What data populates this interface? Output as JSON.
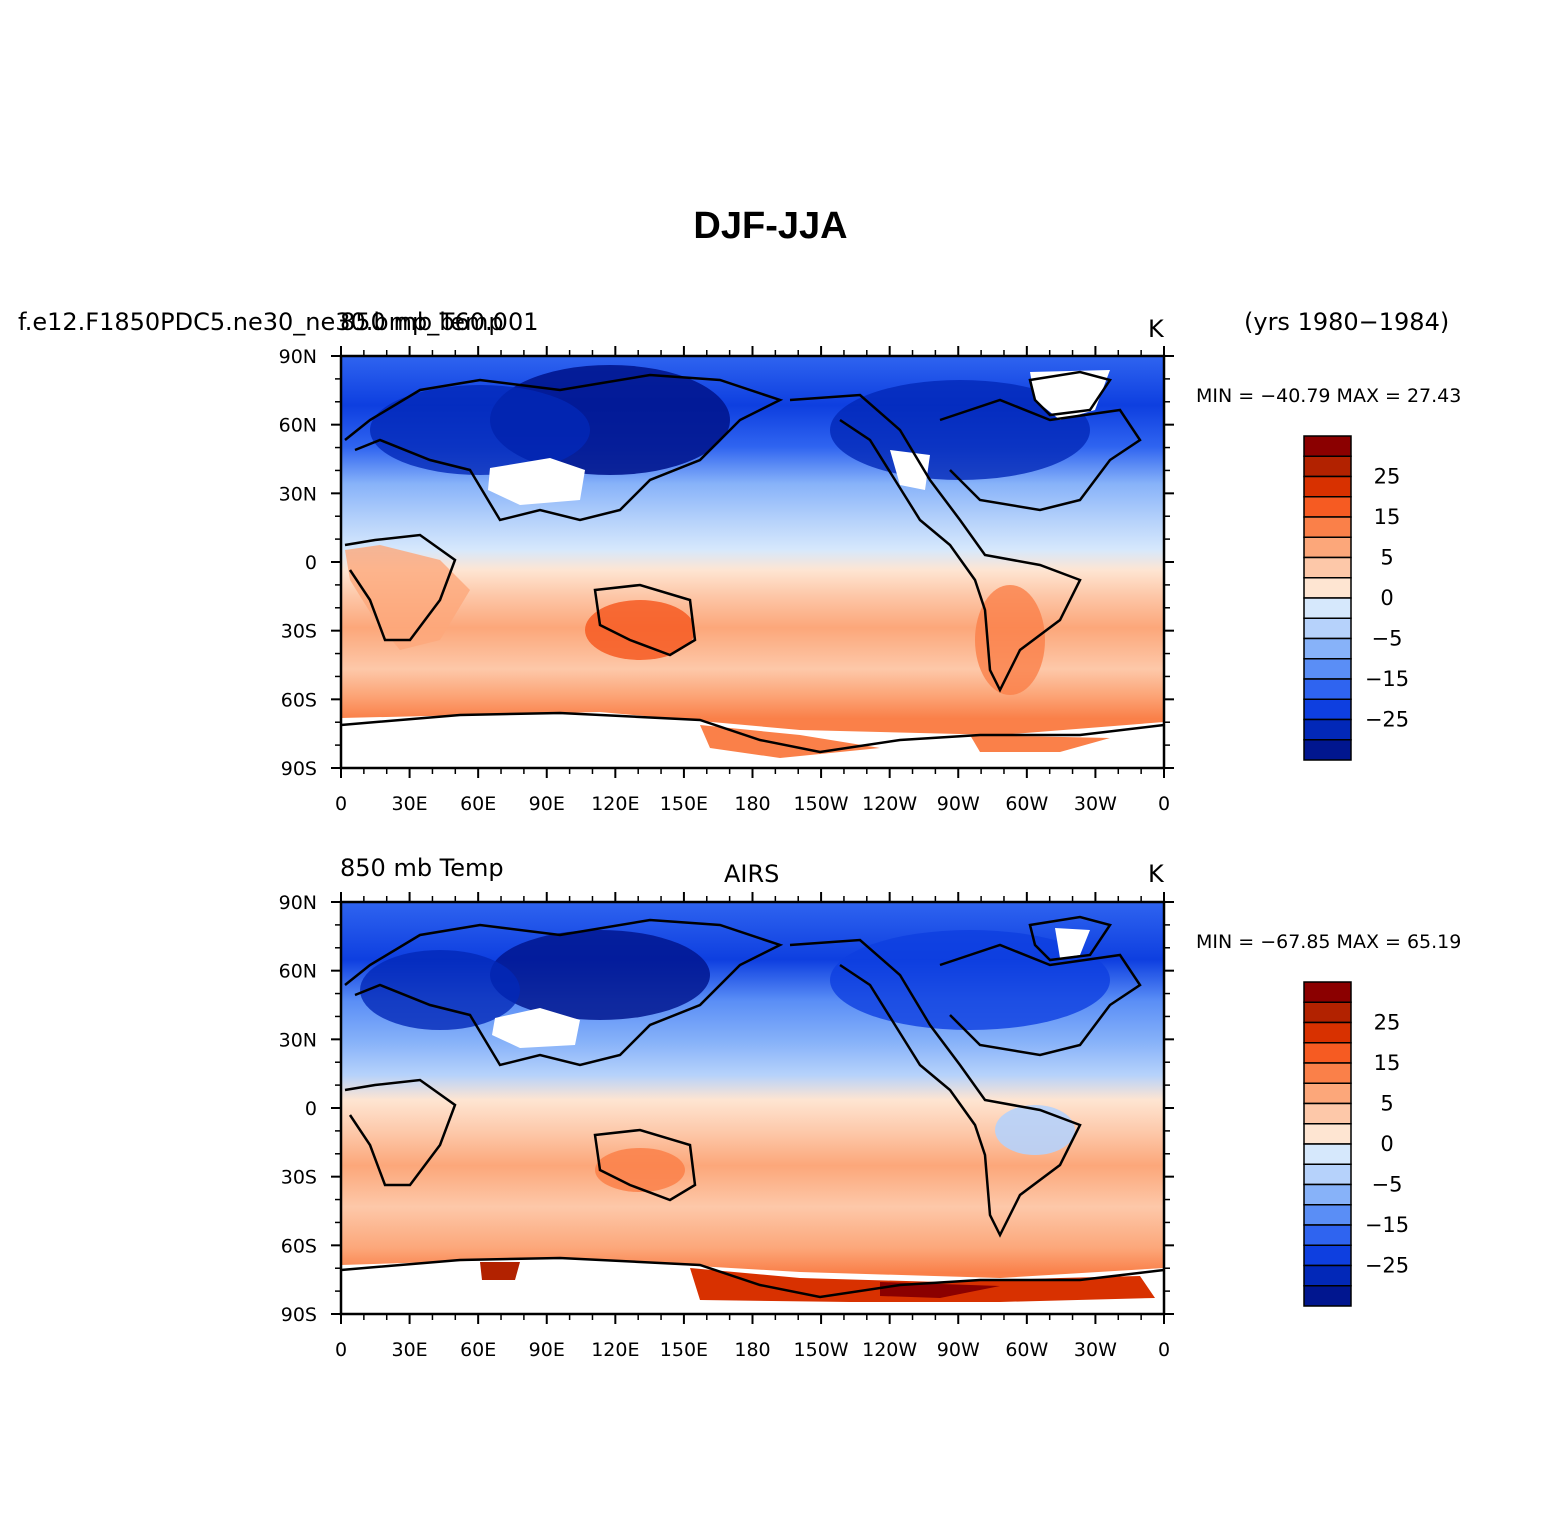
{
  "title": "DJF-JJA",
  "panels": [
    {
      "left_title": "f.e12.F1850PDC5.ne30_ne30.bmp_b60.001",
      "left_title_overlay": "850 mb Temp",
      "center_title": "",
      "right_title": "K",
      "years": "(yrs 1980−1984)",
      "minmax": "MIN = −40.79 MAX =  27.43"
    },
    {
      "left_title": "850 mb Temp",
      "center_title": "AIRS",
      "right_title": "K",
      "years": "",
      "minmax": "MIN = −67.85 MAX =  65.19"
    }
  ],
  "lon_ticks": [
    "0",
    "30E",
    "60E",
    "90E",
    "120E",
    "150E",
    "180",
    "150W",
    "120W",
    "90W",
    "60W",
    "30W",
    "0"
  ],
  "lat_ticks": [
    "90N",
    "60N",
    "30N",
    "0",
    "30S",
    "60S",
    "90S"
  ],
  "colorbar": {
    "labels": [
      "25",
      "15",
      "5",
      "0",
      "−5",
      "−15",
      "−25"
    ],
    "colors": [
      "#8b0000",
      "#b22200",
      "#d83100",
      "#f65b22",
      "#fa8049",
      "#fca77a",
      "#fdc8a9",
      "#fee5d2",
      "#d6e8fc",
      "#b6d2fb",
      "#87b2f9",
      "#5a8ef6",
      "#2f64f0",
      "#0e3fe0",
      "#0228b8",
      "#01168f"
    ]
  }
}
